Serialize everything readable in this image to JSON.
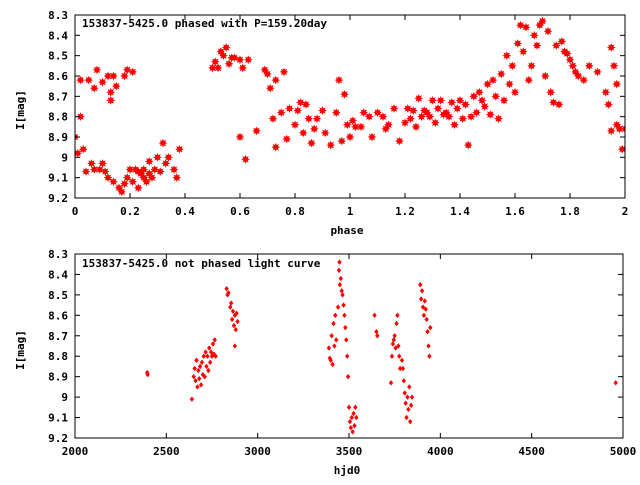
{
  "chart_data": [
    {
      "type": "scatter",
      "title": "153837-5425.0 phased with P=159.20day",
      "xlabel": "phase",
      "ylabel": "I[mag]",
      "xlim": [
        0,
        2
      ],
      "ylim": [
        9.2,
        8.3
      ],
      "y_inverted": true,
      "xticks": [
        0,
        0.2,
        0.4,
        0.6,
        0.8,
        1,
        1.2,
        1.4,
        1.6,
        1.8,
        2
      ],
      "xtick_labels": [
        "0",
        "0.2",
        "0.4",
        "0.6",
        "0.8",
        "1",
        "1.2",
        "1.4",
        "1.6",
        "1.8",
        "2"
      ],
      "yticks": [
        8.3,
        8.4,
        8.5,
        8.6,
        8.7,
        8.8,
        8.9,
        9,
        9.1,
        9.2
      ],
      "ytick_labels": [
        "8.3",
        "8.4",
        "8.5",
        "8.6",
        "8.7",
        "8.8",
        "8.9",
        "9",
        "9.1",
        "9.2"
      ],
      "grid": false,
      "marker_color": "#ff0000",
      "marker": "filled-star",
      "points": [
        [
          0.0,
          8.9
        ],
        [
          0.01,
          8.98
        ],
        [
          0.02,
          8.8
        ],
        [
          0.02,
          8.62
        ],
        [
          0.03,
          8.96
        ],
        [
          0.04,
          9.07
        ],
        [
          0.05,
          8.62
        ],
        [
          0.06,
          9.03
        ],
        [
          0.07,
          8.66
        ],
        [
          0.07,
          9.06
        ],
        [
          0.08,
          8.57
        ],
        [
          0.09,
          9.06
        ],
        [
          0.1,
          9.03
        ],
        [
          0.1,
          8.63
        ],
        [
          0.11,
          9.07
        ],
        [
          0.12,
          8.6
        ],
        [
          0.12,
          9.1
        ],
        [
          0.13,
          8.68
        ],
        [
          0.13,
          8.72
        ],
        [
          0.14,
          9.12
        ],
        [
          0.14,
          8.6
        ],
        [
          0.15,
          8.65
        ],
        [
          0.16,
          9.15
        ],
        [
          0.17,
          9.17
        ],
        [
          0.18,
          9.13
        ],
        [
          0.18,
          8.6
        ],
        [
          0.19,
          9.1
        ],
        [
          0.19,
          8.57
        ],
        [
          0.2,
          9.06
        ],
        [
          0.21,
          8.58
        ],
        [
          0.21,
          9.12
        ],
        [
          0.22,
          9.06
        ],
        [
          0.23,
          9.07
        ],
        [
          0.23,
          9.15
        ],
        [
          0.24,
          9.08
        ],
        [
          0.25,
          9.1
        ],
        [
          0.25,
          9.06
        ],
        [
          0.26,
          9.12
        ],
        [
          0.27,
          9.02
        ],
        [
          0.27,
          9.08
        ],
        [
          0.28,
          9.1
        ],
        [
          0.29,
          9.06
        ],
        [
          0.3,
          9.0
        ],
        [
          0.31,
          9.07
        ],
        [
          0.32,
          8.93
        ],
        [
          0.33,
          9.03
        ],
        [
          0.34,
          9.0
        ],
        [
          0.36,
          9.06
        ],
        [
          0.37,
          9.1
        ],
        [
          0.38,
          8.96
        ],
        [
          0.5,
          8.56
        ],
        [
          0.51,
          8.53
        ],
        [
          0.52,
          8.56
        ],
        [
          0.53,
          8.48
        ],
        [
          0.54,
          8.5
        ],
        [
          0.55,
          8.46
        ],
        [
          0.56,
          8.54
        ],
        [
          0.57,
          8.51
        ],
        [
          0.58,
          8.51
        ],
        [
          0.6,
          8.52
        ],
        [
          0.61,
          8.56
        ],
        [
          0.6,
          8.9
        ],
        [
          0.62,
          9.01
        ],
        [
          0.63,
          8.52
        ],
        [
          0.66,
          8.87
        ],
        [
          0.69,
          8.57
        ],
        [
          0.7,
          8.59
        ],
        [
          0.71,
          8.66
        ],
        [
          0.72,
          8.81
        ],
        [
          0.73,
          8.62
        ],
        [
          0.73,
          8.95
        ],
        [
          0.75,
          8.78
        ],
        [
          0.76,
          8.58
        ],
        [
          0.77,
          8.91
        ],
        [
          0.78,
          8.76
        ],
        [
          0.8,
          8.84
        ],
        [
          0.81,
          8.77
        ],
        [
          0.82,
          8.73
        ],
        [
          0.83,
          8.88
        ],
        [
          0.84,
          8.74
        ],
        [
          0.85,
          8.81
        ],
        [
          0.86,
          8.93
        ],
        [
          0.87,
          8.86
        ],
        [
          0.88,
          8.81
        ],
        [
          0.9,
          8.77
        ],
        [
          0.91,
          8.88
        ],
        [
          0.93,
          8.94
        ],
        [
          0.95,
          8.78
        ],
        [
          0.96,
          8.62
        ],
        [
          0.97,
          8.92
        ],
        [
          0.98,
          8.69
        ],
        [
          0.99,
          8.84
        ],
        [
          1.0,
          8.9
        ],
        [
          1.01,
          8.82
        ],
        [
          1.02,
          8.85
        ],
        [
          1.04,
          8.85
        ],
        [
          1.05,
          8.78
        ],
        [
          1.07,
          8.8
        ],
        [
          1.08,
          8.9
        ],
        [
          1.1,
          8.78
        ],
        [
          1.12,
          8.8
        ],
        [
          1.13,
          8.86
        ],
        [
          1.14,
          8.84
        ],
        [
          1.16,
          8.76
        ],
        [
          1.18,
          8.92
        ],
        [
          1.2,
          8.83
        ],
        [
          1.21,
          8.76
        ],
        [
          1.22,
          8.81
        ],
        [
          1.23,
          8.77
        ],
        [
          1.24,
          8.85
        ],
        [
          1.25,
          8.71
        ],
        [
          1.26,
          8.8
        ],
        [
          1.27,
          8.77
        ],
        [
          1.28,
          8.78
        ],
        [
          1.29,
          8.8
        ],
        [
          1.3,
          8.72
        ],
        [
          1.31,
          8.83
        ],
        [
          1.32,
          8.76
        ],
        [
          1.33,
          8.72
        ],
        [
          1.34,
          8.79
        ],
        [
          1.35,
          8.78
        ],
        [
          1.36,
          8.8
        ],
        [
          1.37,
          8.73
        ],
        [
          1.38,
          8.84
        ],
        [
          1.39,
          8.76
        ],
        [
          1.4,
          8.72
        ],
        [
          1.41,
          8.81
        ],
        [
          1.42,
          8.74
        ],
        [
          1.43,
          8.94
        ],
        [
          1.44,
          8.8
        ],
        [
          1.45,
          8.7
        ],
        [
          1.46,
          8.78
        ],
        [
          1.47,
          8.68
        ],
        [
          1.48,
          8.72
        ],
        [
          1.49,
          8.75
        ],
        [
          1.5,
          8.64
        ],
        [
          1.51,
          8.79
        ],
        [
          1.52,
          8.62
        ],
        [
          1.53,
          8.7
        ],
        [
          1.54,
          8.81
        ],
        [
          1.55,
          8.59
        ],
        [
          1.56,
          8.72
        ],
        [
          1.57,
          8.5
        ],
        [
          1.58,
          8.64
        ],
        [
          1.59,
          8.55
        ],
        [
          1.6,
          8.68
        ],
        [
          1.61,
          8.44
        ],
        [
          1.62,
          8.35
        ],
        [
          1.63,
          8.48
        ],
        [
          1.64,
          8.36
        ],
        [
          1.65,
          8.62
        ],
        [
          1.66,
          8.55
        ],
        [
          1.67,
          8.4
        ],
        [
          1.68,
          8.45
        ],
        [
          1.69,
          8.35
        ],
        [
          1.7,
          8.33
        ],
        [
          1.71,
          8.6
        ],
        [
          1.72,
          8.38
        ],
        [
          1.73,
          8.68
        ],
        [
          1.74,
          8.73
        ],
        [
          1.75,
          8.45
        ],
        [
          1.76,
          8.74
        ],
        [
          1.77,
          8.43
        ],
        [
          1.78,
          8.48
        ],
        [
          1.79,
          8.49
        ],
        [
          1.8,
          8.52
        ],
        [
          1.81,
          8.55
        ],
        [
          1.82,
          8.58
        ],
        [
          1.83,
          8.6
        ],
        [
          1.85,
          8.62
        ],
        [
          1.87,
          8.55
        ],
        [
          1.9,
          8.58
        ],
        [
          1.93,
          8.68
        ],
        [
          1.94,
          8.74
        ],
        [
          1.95,
          8.46
        ],
        [
          1.95,
          8.87
        ],
        [
          1.96,
          8.55
        ],
        [
          1.97,
          8.84
        ],
        [
          1.97,
          8.64
        ],
        [
          1.98,
          8.86
        ],
        [
          1.99,
          8.96
        ],
        [
          2.0,
          8.86
        ]
      ]
    },
    {
      "type": "scatter",
      "title": "153837-5425.0 not phased light curve",
      "xlabel": "hjd0",
      "ylabel": "I[mag]",
      "xlim": [
        2000,
        5000
      ],
      "ylim": [
        9.2,
        8.3
      ],
      "y_inverted": true,
      "xticks": [
        2000,
        2500,
        3000,
        3500,
        4000,
        4500,
        5000
      ],
      "xtick_labels": [
        "2000",
        "2500",
        "3000",
        "3500",
        "4000",
        "4500",
        "5000"
      ],
      "yticks": [
        8.3,
        8.4,
        8.5,
        8.6,
        8.7,
        8.8,
        8.9,
        9,
        9.1,
        9.2
      ],
      "ytick_labels": [
        "8.3",
        "8.4",
        "8.5",
        "8.6",
        "8.7",
        "8.8",
        "8.9",
        "9",
        "9.1",
        "9.2"
      ],
      "grid": false,
      "marker_color": "#ff0000",
      "marker": "diamond",
      "points": [
        [
          2395,
          8.88
        ],
        [
          2398,
          8.89
        ],
        [
          2640,
          9.01
        ],
        [
          2650,
          8.9
        ],
        [
          2655,
          8.86
        ],
        [
          2660,
          8.92
        ],
        [
          2665,
          8.82
        ],
        [
          2670,
          8.95
        ],
        [
          2675,
          8.87
        ],
        [
          2680,
          8.91
        ],
        [
          2685,
          8.85
        ],
        [
          2690,
          8.94
        ],
        [
          2695,
          8.83
        ],
        [
          2700,
          8.89
        ],
        [
          2705,
          8.8
        ],
        [
          2710,
          8.9
        ],
        [
          2715,
          8.78
        ],
        [
          2720,
          8.85
        ],
        [
          2725,
          8.8
        ],
        [
          2730,
          8.87
        ],
        [
          2735,
          8.76
        ],
        [
          2740,
          8.83
        ],
        [
          2745,
          8.78
        ],
        [
          2750,
          8.8
        ],
        [
          2755,
          8.74
        ],
        [
          2760,
          8.79
        ],
        [
          2765,
          8.72
        ],
        [
          2770,
          8.8
        ],
        [
          2830,
          8.47
        ],
        [
          2835,
          8.5
        ],
        [
          2840,
          8.49
        ],
        [
          2850,
          8.56
        ],
        [
          2855,
          8.54
        ],
        [
          2860,
          8.62
        ],
        [
          2865,
          8.58
        ],
        [
          2870,
          8.65
        ],
        [
          2875,
          8.6
        ],
        [
          2880,
          8.67
        ],
        [
          2885,
          8.59
        ],
        [
          2890,
          8.63
        ],
        [
          2875,
          8.75
        ],
        [
          3390,
          8.76
        ],
        [
          3395,
          8.81
        ],
        [
          3400,
          8.82
        ],
        [
          3405,
          8.7
        ],
        [
          3410,
          8.84
        ],
        [
          3415,
          8.64
        ],
        [
          3420,
          8.75
        ],
        [
          3425,
          8.6
        ],
        [
          3430,
          8.72
        ],
        [
          3440,
          8.56
        ],
        [
          3445,
          8.38
        ],
        [
          3448,
          8.34
        ],
        [
          3450,
          8.45
        ],
        [
          3455,
          8.42
        ],
        [
          3460,
          8.48
        ],
        [
          3465,
          8.5
        ],
        [
          3470,
          8.55
        ],
        [
          3475,
          8.6
        ],
        [
          3480,
          8.66
        ],
        [
          3485,
          8.72
        ],
        [
          3490,
          8.8
        ],
        [
          3495,
          8.9
        ],
        [
          3500,
          9.05
        ],
        [
          3505,
          9.12
        ],
        [
          3510,
          9.15
        ],
        [
          3515,
          9.1
        ],
        [
          3520,
          9.17
        ],
        [
          3525,
          9.08
        ],
        [
          3530,
          9.14
        ],
        [
          3535,
          9.05
        ],
        [
          3540,
          9.1
        ],
        [
          3640,
          8.6
        ],
        [
          3650,
          8.68
        ],
        [
          3655,
          8.7
        ],
        [
          3730,
          8.93
        ],
        [
          3735,
          8.8
        ],
        [
          3740,
          8.74
        ],
        [
          3745,
          8.72
        ],
        [
          3750,
          8.7
        ],
        [
          3755,
          8.76
        ],
        [
          3760,
          8.64
        ],
        [
          3765,
          8.6
        ],
        [
          3770,
          8.75
        ],
        [
          3775,
          8.8
        ],
        [
          3780,
          8.86
        ],
        [
          3790,
          8.82
        ],
        [
          3795,
          8.86
        ],
        [
          3800,
          8.92
        ],
        [
          3805,
          8.98
        ],
        [
          3810,
          9.03
        ],
        [
          3815,
          9.1
        ],
        [
          3820,
          9.0
        ],
        [
          3825,
          9.06
        ],
        [
          3830,
          8.95
        ],
        [
          3835,
          9.12
        ],
        [
          3840,
          9.04
        ],
        [
          3845,
          9.0
        ],
        [
          3890,
          8.45
        ],
        [
          3895,
          8.52
        ],
        [
          3900,
          8.48
        ],
        [
          3905,
          8.56
        ],
        [
          3910,
          8.6
        ],
        [
          3915,
          8.53
        ],
        [
          3920,
          8.57
        ],
        [
          3925,
          8.62
        ],
        [
          3930,
          8.68
        ],
        [
          3935,
          8.75
        ],
        [
          3940,
          8.8
        ],
        [
          3945,
          8.66
        ],
        [
          4960,
          8.93
        ]
      ]
    }
  ]
}
